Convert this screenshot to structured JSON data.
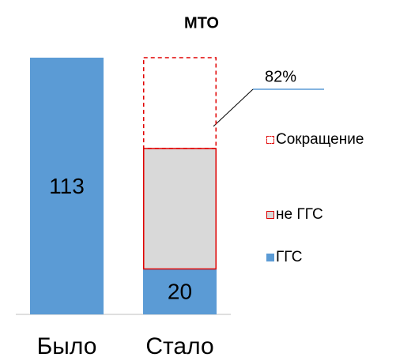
{
  "chart_data": {
    "type": "stacked_bar",
    "title": "МТО",
    "categories": [
      "Было",
      "Стало"
    ],
    "series": [
      {
        "name": "ГГС",
        "color": "#5b9bd5",
        "stroke": "#5b9bd5",
        "dashed": false,
        "values": [
          113,
          20
        ]
      },
      {
        "name": "не ГГС",
        "color": "#d9d9d9",
        "stroke": "#e00000",
        "dashed": false,
        "values": [
          null,
          53
        ]
      },
      {
        "name": "Сокращение",
        "color": "none",
        "stroke": "#e00000",
        "dashed": true,
        "values": [
          null,
          40
        ]
      }
    ],
    "value_labels_series": 0,
    "annotations": [
      {
        "text": "82%"
      }
    ],
    "legend": "right"
  }
}
